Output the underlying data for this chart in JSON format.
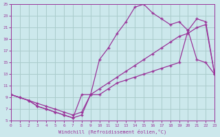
{
  "bg_color": "#cce8ec",
  "grid_color": "#aacccc",
  "line_color": "#993399",
  "xlabel": "Windchill (Refroidissement éolien,°C)",
  "xlim": [
    0,
    23
  ],
  "ylim": [
    5,
    25
  ],
  "xticks": [
    0,
    1,
    2,
    3,
    4,
    5,
    6,
    7,
    8,
    9,
    10,
    11,
    12,
    13,
    14,
    15,
    16,
    17,
    18,
    19,
    20,
    21,
    22,
    23
  ],
  "yticks": [
    5,
    7,
    9,
    11,
    13,
    15,
    17,
    19,
    21,
    23,
    25
  ],
  "line1_x": [
    0,
    1,
    2,
    3,
    4,
    5,
    6,
    7,
    8,
    9,
    10,
    11,
    12,
    13,
    14,
    15,
    16,
    17,
    18,
    19,
    20,
    21,
    22,
    23
  ],
  "line1_y": [
    9.5,
    9.0,
    8.5,
    8.0,
    7.5,
    7.0,
    6.5,
    6.0,
    6.5,
    9.5,
    10.5,
    11.5,
    12.5,
    13.5,
    14.5,
    15.5,
    16.5,
    17.5,
    18.5,
    19.5,
    20.0,
    21.0,
    21.5,
    13.0
  ],
  "line2_x": [
    0,
    2,
    3,
    4,
    5,
    6,
    7,
    8,
    9,
    10,
    11,
    12,
    13,
    14,
    15,
    16,
    17,
    18,
    19,
    20,
    21,
    22,
    23
  ],
  "line2_y": [
    9.5,
    8.5,
    7.5,
    7.0,
    6.5,
    6.0,
    5.5,
    9.5,
    9.5,
    15.5,
    17.5,
    20.0,
    22.0,
    24.5,
    25.0,
    23.5,
    22.5,
    21.5,
    22.0,
    20.5,
    22.5,
    22.0,
    13.0
  ],
  "line3_x": [
    0,
    1,
    2,
    3,
    4,
    5,
    6,
    7,
    8,
    9,
    10,
    11,
    12,
    13,
    14,
    15,
    16,
    17,
    18,
    19,
    20,
    21,
    22,
    23
  ],
  "line3_y": [
    9.5,
    9.0,
    8.5,
    7.5,
    7.0,
    6.5,
    6.0,
    5.5,
    6.0,
    9.5,
    9.5,
    10.5,
    11.5,
    12.0,
    12.5,
    13.0,
    13.5,
    14.0,
    14.5,
    15.0,
    20.5,
    15.5,
    15.0,
    13.0
  ]
}
